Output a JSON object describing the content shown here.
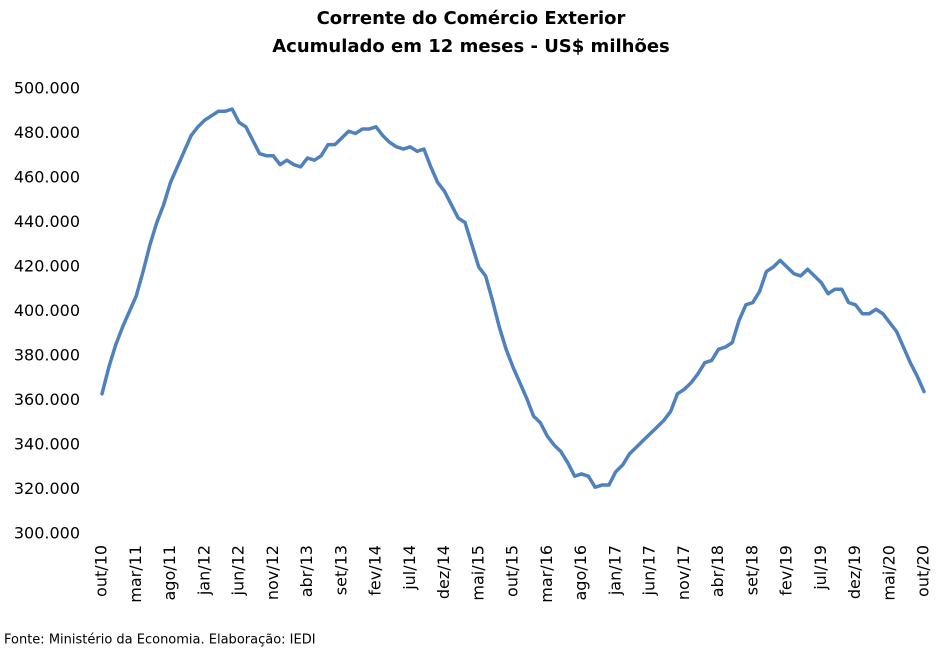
{
  "chart_data": {
    "type": "line",
    "title": "Corrente do Comércio Exterior",
    "subtitle": "Acumulado em 12 meses - US$ milhões",
    "source": "Fonte: Ministério da Economia. Elaboração: IEDI",
    "color": "#4f81bd",
    "categories": [
      "out/10",
      null,
      null,
      null,
      null,
      "mar/11",
      null,
      null,
      null,
      null,
      "ago/11",
      null,
      null,
      null,
      null,
      "jan/12",
      null,
      null,
      null,
      null,
      "jun/12",
      null,
      null,
      null,
      null,
      "nov/12",
      null,
      null,
      null,
      null,
      "abr/13",
      null,
      null,
      null,
      null,
      "set/13",
      null,
      null,
      null,
      null,
      "fev/14",
      null,
      null,
      null,
      null,
      "jul/14",
      null,
      null,
      null,
      null,
      "dez/14",
      null,
      null,
      null,
      null,
      "mai/15",
      null,
      null,
      null,
      null,
      "out/15",
      null,
      null,
      null,
      null,
      "mar/16",
      null,
      null,
      null,
      null,
      "ago/16",
      null,
      null,
      null,
      null,
      "jan/17",
      null,
      null,
      null,
      null,
      "jun/17",
      null,
      null,
      null,
      null,
      "nov/17",
      null,
      null,
      null,
      null,
      "abr/18",
      null,
      null,
      null,
      null,
      "set/18",
      null,
      null,
      null,
      null,
      "fev/19",
      null,
      null,
      null,
      null,
      "jul/19",
      null,
      null,
      null,
      null,
      "dez/19",
      null,
      null,
      null,
      null,
      "mai/20",
      null,
      null,
      null,
      null,
      "out/20"
    ],
    "values": [
      363000,
      375000,
      385000,
      393000,
      400000,
      407000,
      418000,
      430000,
      440000,
      448000,
      458000,
      465000,
      472000,
      479000,
      483000,
      486000,
      488000,
      490000,
      490000,
      491000,
      485000,
      483000,
      477000,
      471000,
      470000,
      470000,
      466000,
      468000,
      466000,
      465000,
      469000,
      468000,
      470000,
      475000,
      475000,
      478000,
      481000,
      480000,
      482000,
      482000,
      483000,
      479000,
      476000,
      474000,
      473000,
      474000,
      472000,
      473000,
      465000,
      458000,
      454000,
      448000,
      442000,
      440000,
      430000,
      420000,
      416000,
      405000,
      393000,
      383000,
      375000,
      368000,
      361000,
      353000,
      350000,
      344000,
      340000,
      337000,
      332000,
      326000,
      327000,
      326000,
      321000,
      322000,
      322000,
      328000,
      331000,
      336000,
      339000,
      342000,
      345000,
      348000,
      351000,
      355000,
      363000,
      365000,
      368000,
      372000,
      377000,
      378000,
      383000,
      384000,
      386000,
      396000,
      403000,
      404000,
      409000,
      418000,
      420000,
      423000,
      420000,
      417000,
      416000,
      419000,
      416000,
      413000,
      408000,
      410000,
      410000,
      404000,
      403000,
      399000,
      399000,
      401000,
      399000,
      395000,
      391000,
      384000,
      377000,
      371000,
      364000
    ],
    "ylim": [
      300000,
      500000
    ],
    "yticks": [
      {
        "value": 300000,
        "label": "300.000"
      },
      {
        "value": 320000,
        "label": "320.000"
      },
      {
        "value": 340000,
        "label": "340.000"
      },
      {
        "value": 360000,
        "label": "360.000"
      },
      {
        "value": 380000,
        "label": "380.000"
      },
      {
        "value": 400000,
        "label": "400.000"
      },
      {
        "value": 420000,
        "label": "420.000"
      },
      {
        "value": 440000,
        "label": "440.000"
      },
      {
        "value": 460000,
        "label": "460.000"
      },
      {
        "value": 480000,
        "label": "480.000"
      },
      {
        "value": 500000,
        "label": "500.000"
      }
    ],
    "grid": false
  }
}
